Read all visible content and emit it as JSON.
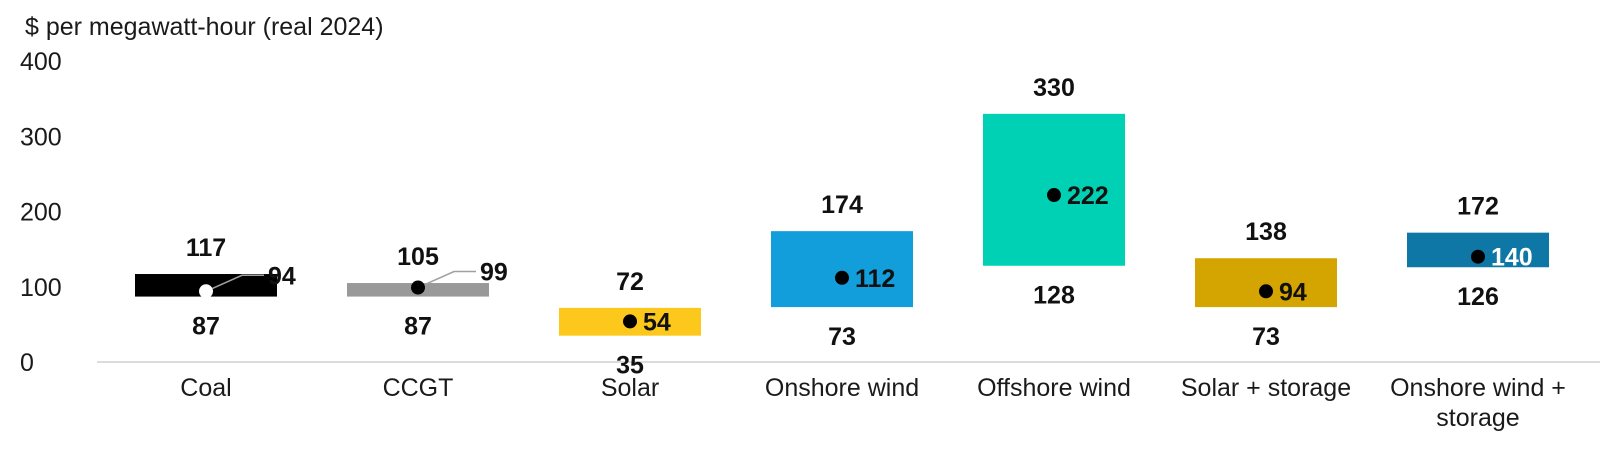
{
  "chart_data": {
    "type": "bar",
    "subtype": "floating-range with midpoint marker",
    "unit_label": "$ per megawatt-hour (real 2024)",
    "ylim": [
      0,
      400
    ],
    "yticks": [
      "0",
      "100",
      "200",
      "300",
      "400"
    ],
    "grid": false,
    "categories": [
      {
        "lines": [
          "Coal"
        ],
        "low": 87,
        "high": 117,
        "mid": 94,
        "color": "#000000",
        "marker_color": "#ffffff",
        "mid_label_color": "#111111",
        "callout": true
      },
      {
        "lines": [
          "CCGT"
        ],
        "low": 87,
        "high": 105,
        "mid": 99,
        "color": "#999999",
        "marker_color": "#000000",
        "mid_label_color": "#111111",
        "callout": true
      },
      {
        "lines": [
          "Solar"
        ],
        "low": 35,
        "high": 72,
        "mid": 54,
        "color": "#fcc81c",
        "marker_color": "#000000",
        "mid_label_color": "#111111",
        "callout": false
      },
      {
        "lines": [
          "Onshore wind"
        ],
        "low": 73,
        "high": 174,
        "mid": 112,
        "color": "#129ddb",
        "marker_color": "#000000",
        "mid_label_color": "#111111",
        "callout": false
      },
      {
        "lines": [
          "Offshore wind"
        ],
        "low": 128,
        "high": 330,
        "mid": 222,
        "color": "#00d1b4",
        "marker_color": "#000000",
        "mid_label_color": "#111111",
        "callout": false
      },
      {
        "lines": [
          "Solar + storage"
        ],
        "low": 73,
        "high": 138,
        "mid": 94,
        "color": "#d4a400",
        "marker_color": "#000000",
        "mid_label_color": "#111111",
        "callout": false
      },
      {
        "lines": [
          "Onshore wind +",
          "storage"
        ],
        "low": 126,
        "high": 172,
        "mid": 140,
        "color": "#0e77a6",
        "marker_color": "#000000",
        "mid_label_color": "#ffffff",
        "callout": false
      }
    ]
  }
}
